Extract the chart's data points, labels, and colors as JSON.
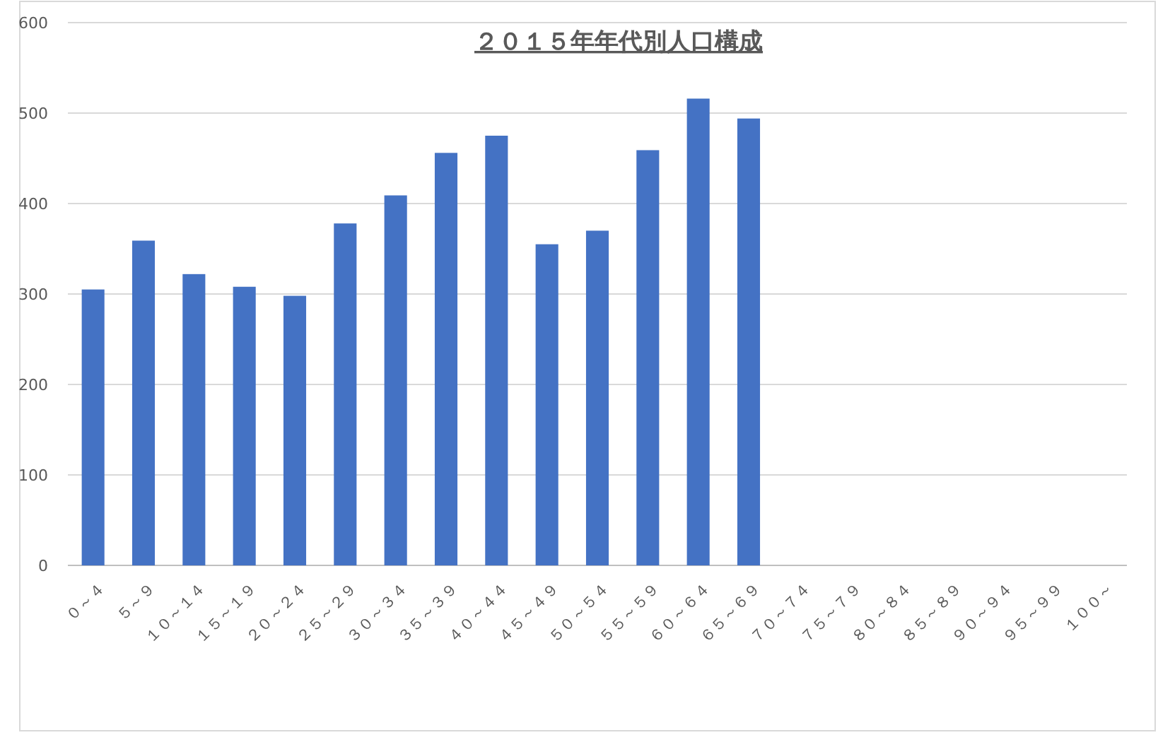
{
  "chart_data": {
    "type": "bar",
    "title": "２０１５年年代別人口構成",
    "categories": [
      "０～４",
      "５～９",
      "１０～１４",
      "１５～１９",
      "２０～２４",
      "２５～２９",
      "３０～３４",
      "３５～３９",
      "４０～４４",
      "４５～４９",
      "５０～５４",
      "５５～５９",
      "６０～６４",
      "６５～６９",
      "７０～７４",
      "７５～７９",
      "８０～８４",
      "８５～８９",
      "９０～９４",
      "９５～９９",
      "１００～"
    ],
    "values": [
      305,
      359,
      322,
      308,
      298,
      378,
      409,
      456,
      475,
      355,
      370,
      459,
      516,
      494,
      null,
      null,
      null,
      null,
      null,
      null,
      null
    ],
    "color": "#4472c4",
    "ylim": [
      0,
      600
    ],
    "yticks": [
      0,
      100,
      200,
      300,
      400,
      500,
      600
    ],
    "grid": "y"
  }
}
